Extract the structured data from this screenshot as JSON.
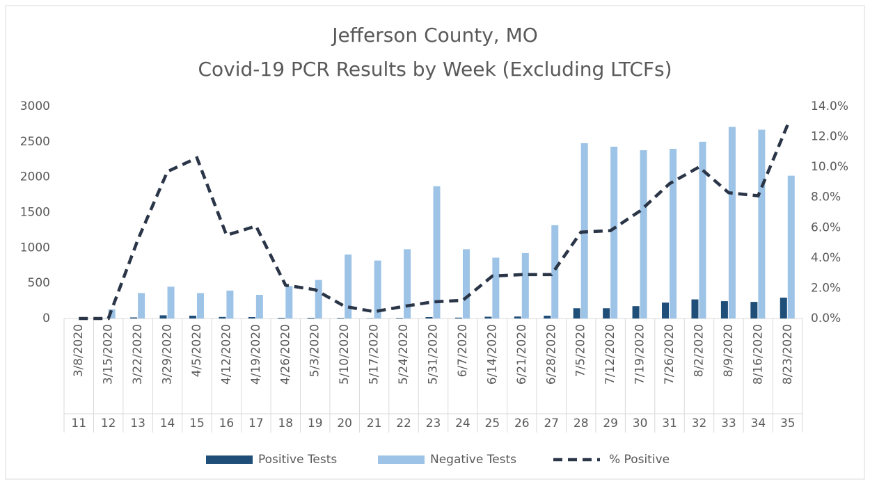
{
  "chart_data": {
    "type": "bar",
    "title": "Jefferson County, MO",
    "subtitle": "Covid-19 PCR Results by Week (Excluding LTCFs)",
    "categories": [
      "3/8/2020",
      "3/15/2020",
      "3/22/2020",
      "3/29/2020",
      "4/5/2020",
      "4/12/2020",
      "4/19/2020",
      "4/26/2020",
      "5/3/2020",
      "5/10/2020",
      "5/17/2020",
      "5/24/2020",
      "5/31/2020",
      "6/7/2020",
      "6/14/2020",
      "6/21/2020",
      "6/28/2020",
      "7/5/2020",
      "7/12/2020",
      "7/19/2020",
      "7/26/2020",
      "8/2/2020",
      "8/9/2020",
      "8/16/2020",
      "8/23/2020"
    ],
    "weeks": [
      11,
      12,
      13,
      14,
      15,
      16,
      17,
      18,
      19,
      20,
      21,
      22,
      23,
      24,
      25,
      26,
      27,
      28,
      29,
      30,
      31,
      32,
      33,
      34,
      35
    ],
    "series": [
      {
        "name": "Positive Tests",
        "color": "#1f4e79",
        "values": [
          0,
          2,
          15,
          45,
          40,
          22,
          20,
          10,
          10,
          8,
          4,
          8,
          20,
          12,
          25,
          28,
          40,
          145,
          145,
          175,
          225,
          270,
          245,
          235,
          295
        ]
      },
      {
        "name": "Negative Tests",
        "color": "#9dc3e6",
        "values": [
          2,
          130,
          360,
          450,
          360,
          395,
          335,
          460,
          545,
          905,
          820,
          980,
          1870,
          980,
          860,
          925,
          1320,
          2480,
          2430,
          2380,
          2400,
          2500,
          2710,
          2670,
          2020
        ]
      },
      {
        "name": "% Positive",
        "color": "#2a3547",
        "type": "line",
        "axis": "y2",
        "values": [
          0,
          0,
          5.2,
          9.7,
          10.6,
          5.5,
          6.1,
          2.2,
          1.9,
          0.8,
          0.45,
          0.8,
          1.1,
          1.2,
          2.8,
          2.9,
          2.9,
          5.7,
          5.8,
          7.1,
          8.9,
          10.0,
          8.3,
          8.1,
          12.8
        ]
      }
    ],
    "ylim": [
      0,
      3000
    ],
    "yticks": [
      0,
      500,
      1000,
      1500,
      2000,
      2500,
      3000
    ],
    "y2lim": [
      0,
      14
    ],
    "y2ticks": [
      {
        "value": 0,
        "label": "0.0%"
      },
      {
        "value": 2,
        "label": "2.0%"
      },
      {
        "value": 4,
        "label": "4.0%"
      },
      {
        "value": 6,
        "label": "6.0%"
      },
      {
        "value": 8,
        "label": "8.0%"
      },
      {
        "value": 10,
        "label": "10.0%"
      },
      {
        "value": 12,
        "label": "12.0%"
      },
      {
        "value": 14,
        "label": "14.0%"
      }
    ],
    "legend": "bottom"
  }
}
